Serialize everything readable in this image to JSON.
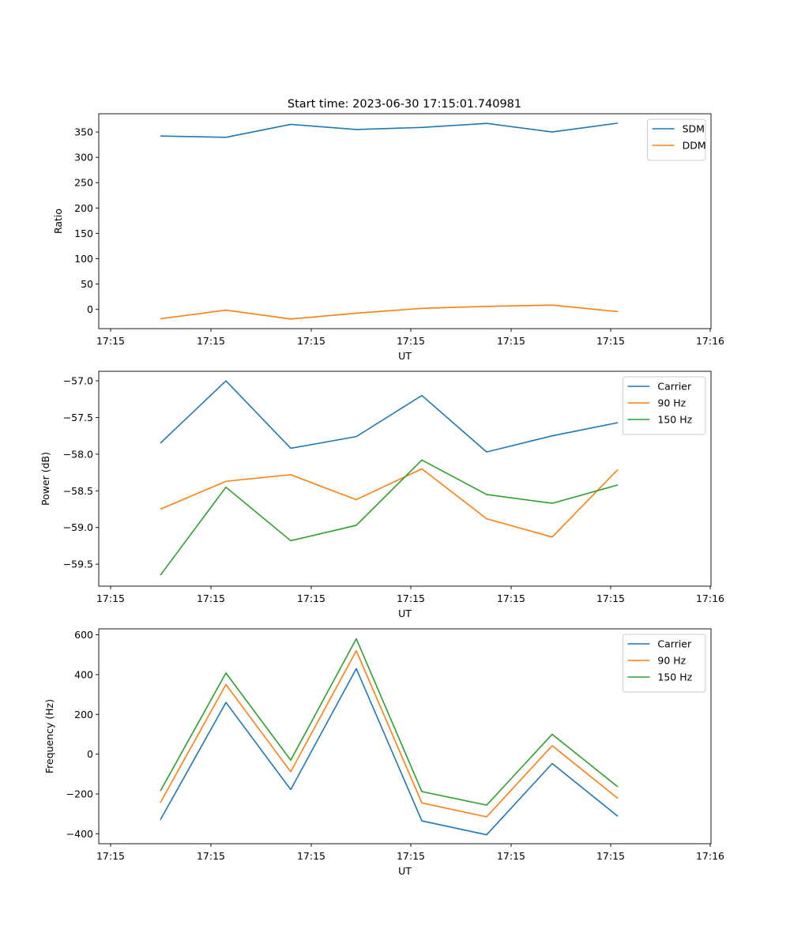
{
  "title": "Start time: 2023-06-30 17:15:01.740981",
  "colors": {
    "blue": "#1f77b4",
    "orange": "#ff7f0e",
    "green": "#2ca02c"
  },
  "chart_data": [
    {
      "type": "line",
      "xlabel": "UT",
      "ylabel": "Ratio",
      "xticks": [
        "17:15",
        "17:15",
        "17:15",
        "17:15",
        "17:15",
        "17:15",
        "17:16"
      ],
      "yticks": [
        0,
        50,
        100,
        150,
        200,
        250,
        300,
        350
      ],
      "ylim": [
        -38,
        386
      ],
      "legend": "top-right",
      "grid": false,
      "series": [
        {
          "name": "SDM",
          "color": "blue",
          "values": [
            342,
            339.5,
            365,
            355,
            359,
            367,
            350,
            367.5
          ]
        },
        {
          "name": "DDM",
          "color": "orange",
          "values": [
            -18.5,
            -1.5,
            -19,
            -7.5,
            2,
            6,
            8.5,
            -4.5
          ]
        }
      ]
    },
    {
      "type": "line",
      "xlabel": "UT",
      "ylabel": "Power (dB)",
      "xticks": [
        "17:15",
        "17:15",
        "17:15",
        "17:15",
        "17:15",
        "17:15",
        "17:16"
      ],
      "yticks": [
        -59.5,
        -59.0,
        -58.5,
        -58.0,
        -57.5,
        -57.0
      ],
      "ylim": [
        -59.8,
        -56.87
      ],
      "legend": "top-right",
      "grid": false,
      "series": [
        {
          "name": "Carrier",
          "color": "blue",
          "values": [
            -57.85,
            -57.0,
            -57.92,
            -57.76,
            -57.2,
            -57.97,
            -57.75,
            -57.57
          ]
        },
        {
          "name": "90 Hz",
          "color": "orange",
          "values": [
            -58.75,
            -58.37,
            -58.28,
            -58.62,
            -58.2,
            -58.88,
            -59.13,
            -58.21
          ]
        },
        {
          "name": "150 Hz",
          "color": "green",
          "values": [
            -59.65,
            -58.45,
            -59.18,
            -58.97,
            -58.08,
            -58.55,
            -58.67,
            -58.42
          ]
        }
      ]
    },
    {
      "type": "line",
      "xlabel": "UT",
      "ylabel": "Frequency (Hz)",
      "xticks": [
        "17:15",
        "17:15",
        "17:15",
        "17:15",
        "17:15",
        "17:15",
        "17:16"
      ],
      "yticks": [
        -400,
        -200,
        0,
        200,
        400,
        600
      ],
      "ylim": [
        -450,
        630
      ],
      "legend": "top-right",
      "grid": false,
      "series": [
        {
          "name": "Carrier",
          "color": "blue",
          "values": [
            -330,
            260,
            -178,
            430,
            -335,
            -405,
            -47,
            -312
          ]
        },
        {
          "name": "90 Hz",
          "color": "orange",
          "values": [
            -243,
            350,
            -88,
            520,
            -245,
            -315,
            43,
            -222
          ]
        },
        {
          "name": "150 Hz",
          "color": "green",
          "values": [
            -185,
            408,
            -30,
            580,
            -188,
            -256,
            100,
            -164
          ]
        }
      ]
    }
  ]
}
